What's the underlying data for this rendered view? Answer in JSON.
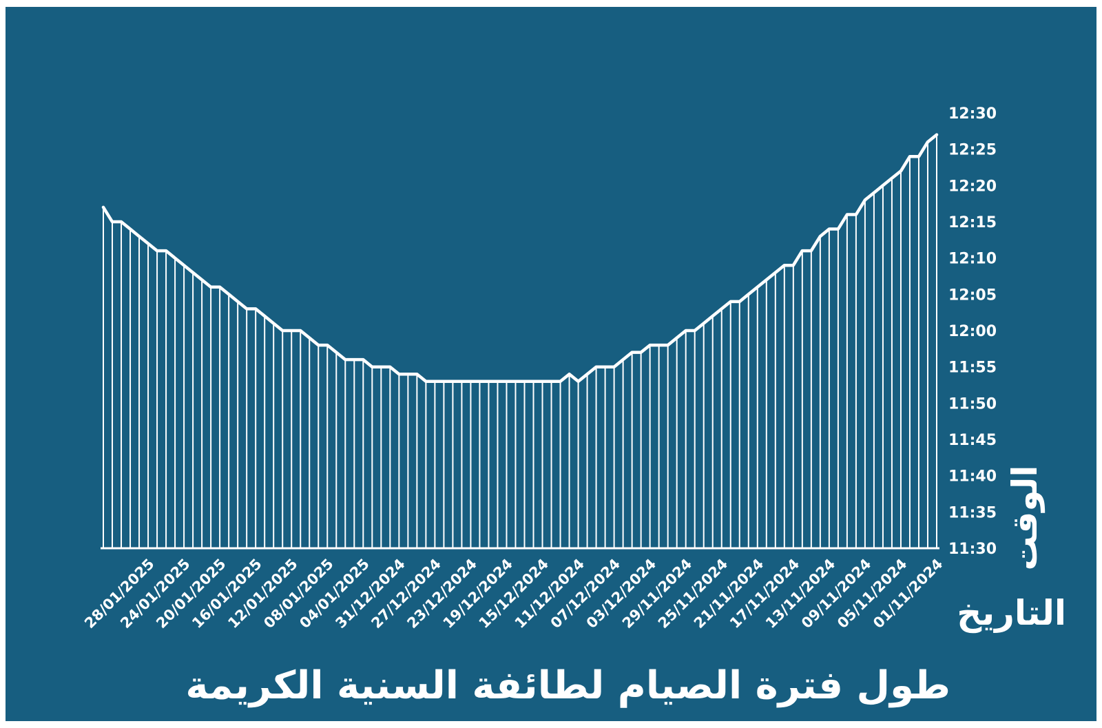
{
  "colors": {
    "background": "#175e80",
    "foreground": "#ffffff"
  },
  "chart_data": {
    "type": "area",
    "title": "طول فترة الصيام لطائفة السنية الكريمة",
    "xlabel": "التاريخ",
    "ylabel": "الوقت",
    "x_order": "right-to-left (01/11/2024 at right, 30/01/2025 at left)",
    "x_start": "01/11/2024",
    "x_end": "30/01/2025",
    "x_ticks": [
      "01/11/2024",
      "05/11/2024",
      "09/11/2024",
      "13/11/2024",
      "17/11/2024",
      "21/11/2024",
      "25/11/2024",
      "29/11/2024",
      "03/12/2024",
      "07/12/2024",
      "11/12/2024",
      "15/12/2024",
      "19/12/2024",
      "23/12/2024",
      "27/12/2024",
      "31/12/2024",
      "04/01/2025",
      "08/01/2025",
      "12/01/2025",
      "16/01/2025",
      "20/01/2025",
      "24/01/2025",
      "28/01/2025"
    ],
    "y_ticks": [
      "11:30",
      "11:35",
      "11:40",
      "11:45",
      "11:50",
      "11:55",
      "12:00",
      "12:05",
      "12:10",
      "12:15",
      "12:20",
      "12:25",
      "12:30"
    ],
    "ylim": [
      "11:30",
      "12:30"
    ],
    "grid": false,
    "series": [
      {
        "values": [
          "12:27",
          "12:26",
          "12:24",
          "12:24",
          "12:22",
          "12:21",
          "12:20",
          "12:19",
          "12:18",
          "12:16",
          "12:16",
          "12:14",
          "12:14",
          "12:13",
          "12:11",
          "12:11",
          "12:09",
          "12:09",
          "12:08",
          "12:07",
          "12:06",
          "12:05",
          "12:04",
          "12:04",
          "12:03",
          "12:02",
          "12:01",
          "12:00",
          "12:00",
          "11:59",
          "11:58",
          "11:58",
          "11:58",
          "11:57",
          "11:57",
          "11:56",
          "11:55",
          "11:55",
          "11:55",
          "11:54",
          "11:53",
          "11:54",
          "11:53",
          "11:53",
          "11:53",
          "11:53",
          "11:53",
          "11:53",
          "11:53",
          "11:53",
          "11:53",
          "11:53",
          "11:53",
          "11:53",
          "11:53",
          "11:53",
          "11:53",
          "11:53",
          "11:54",
          "11:54",
          "11:54",
          "11:55",
          "11:55",
          "11:55",
          "11:56",
          "11:56",
          "11:56",
          "11:57",
          "11:58",
          "11:58",
          "11:59",
          "12:00",
          "12:00",
          "12:00",
          "12:01",
          "12:02",
          "12:03",
          "12:03",
          "12:04",
          "12:05",
          "12:06",
          "12:06",
          "12:07",
          "12:08",
          "12:09",
          "12:10",
          "12:11",
          "12:11",
          "12:12",
          "12:13",
          "12:14",
          "12:15",
          "12:15",
          "12:17"
        ]
      }
    ]
  }
}
